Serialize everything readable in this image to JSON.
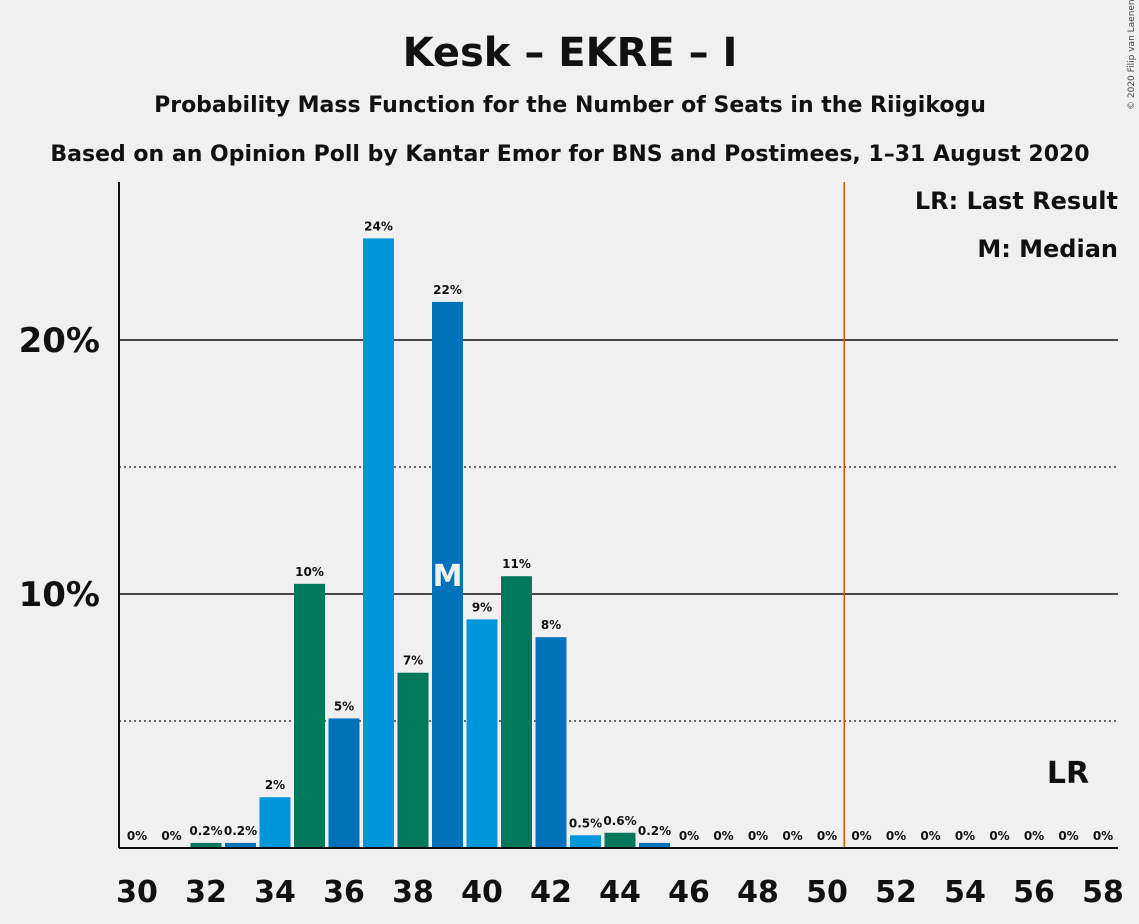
{
  "chart_data": {
    "type": "bar",
    "title": "Kesk – EKRE – I",
    "subtitle": "Probability Mass Function for the Number of Seats in the Riigikogu",
    "subtitle2": "Based on an Opinion Poll by Kantar Emor for BNS and Postimees, 1–31 August 2020",
    "copyright": "© 2020 Filip van Laenen",
    "legend": [
      "LR: Last Result",
      "M: Median"
    ],
    "legend_position": "top-right",
    "ylim": [
      0,
      26
    ],
    "yticks": [
      {
        "value": 10,
        "label": "10%"
      },
      {
        "value": 20,
        "label": "20%"
      }
    ],
    "dotted_gridlines": [
      5,
      15
    ],
    "x": [
      30,
      31,
      32,
      33,
      34,
      35,
      36,
      37,
      38,
      39,
      40,
      41,
      42,
      43,
      44,
      45,
      46,
      47,
      48,
      49,
      50,
      51,
      52,
      53,
      54,
      55,
      56,
      57,
      58
    ],
    "xtick_labels": [
      "30",
      "32",
      "34",
      "36",
      "38",
      "40",
      "42",
      "44",
      "46",
      "48",
      "50",
      "52",
      "54",
      "56",
      "58"
    ],
    "values": [
      0,
      0,
      0.2,
      0.2,
      2,
      10.4,
      5.1,
      24,
      6.9,
      21.5,
      9,
      10.7,
      8.3,
      0.5,
      0.6,
      0.2,
      0,
      0,
      0,
      0,
      0,
      0,
      0,
      0,
      0,
      0,
      0,
      0,
      0
    ],
    "labels": [
      "0%",
      "0%",
      "0.2%",
      "0.2%",
      "2%",
      "10%",
      "5%",
      "24%",
      "7%",
      "22%",
      "9%",
      "11%",
      "8%",
      "0.5%",
      "0.6%",
      "0.2%",
      "0%",
      "0%",
      "0%",
      "0%",
      "0%",
      "0%",
      "0%",
      "0%",
      "0%",
      "0%",
      "0%",
      "0%",
      "0%"
    ],
    "median": 39,
    "median_label": "M",
    "last_result": 51,
    "last_result_label": "LR",
    "colors": {
      "dark_blue": "#0072bb",
      "light_blue": "#0096dc",
      "green": "#00785a",
      "last_result_line": "#c85a00",
      "background": "#f0f0f0"
    }
  }
}
